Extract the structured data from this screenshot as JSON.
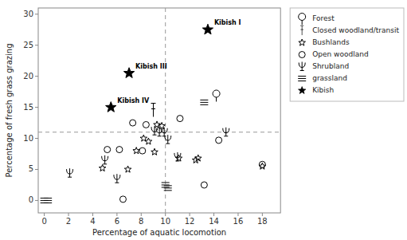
{
  "chart_data": {
    "type": "scatter",
    "xlabel": "Percentage of aquatic locomotion",
    "ylabel": "Percentage of fresh grass grazing",
    "xlim": [
      -0.5,
      19.5
    ],
    "ylim": [
      -2,
      31
    ],
    "xticks": [
      0,
      2,
      4,
      6,
      8,
      10,
      12,
      14,
      16,
      18
    ],
    "yticks": [
      0,
      5,
      10,
      15,
      20,
      25,
      30
    ],
    "hline": 11.0,
    "vline": 10.0,
    "color": "#000000",
    "legend": "right",
    "grid": false,
    "series": [
      {
        "name": "Forest",
        "marker": "tree",
        "x": [
          14.2
        ],
        "values": [
          17.2
        ]
      },
      {
        "name": "Closed woodland/transit",
        "marker": "pole",
        "x": [
          9.0
        ],
        "values": [
          14.5
        ]
      },
      {
        "name": "Bushlands",
        "marker": "star-open",
        "x": [
          4.8,
          6.9,
          7.6,
          8.2,
          8.6,
          9.1,
          9.3,
          9.7,
          11.1,
          12.5,
          12.7,
          18.0
        ],
        "values": [
          5.2,
          5.0,
          8.0,
          10.0,
          9.5,
          7.8,
          12.2,
          12.0,
          6.8,
          6.5,
          6.8,
          5.5
        ]
      },
      {
        "name": "Open woodland",
        "marker": "circle",
        "x": [
          5.2,
          6.2,
          6.5,
          7.3,
          8.1,
          8.4,
          11.2,
          13.2,
          14.4,
          18.0
        ],
        "values": [
          8.2,
          8.2,
          0.2,
          12.5,
          8.0,
          12.2,
          13.2,
          2.5,
          9.7,
          5.8
        ]
      },
      {
        "name": "Shrubland",
        "marker": "psi",
        "x": [
          2.1,
          5.0,
          6.0,
          9.1,
          9.5,
          9.9,
          10.2,
          11.0,
          15.0
        ],
        "values": [
          4.4,
          6.5,
          3.5,
          11.2,
          11.0,
          11.0,
          9.8,
          7.0,
          11.0
        ]
      },
      {
        "name": "grassland",
        "marker": "triple-bar",
        "x": [
          0.0,
          0.3,
          10.0,
          10.2,
          13.2
        ],
        "values": [
          0.0,
          0.0,
          2.5,
          2.0,
          15.8
        ]
      },
      {
        "name": "Kibish",
        "marker": "star",
        "x": [
          13.5,
          7.0,
          5.5
        ],
        "values": [
          27.5,
          20.5,
          15.0
        ]
      }
    ],
    "annotations": [
      {
        "text": "Kibish I",
        "x": 13.5,
        "y": 27.5
      },
      {
        "text": "Kibish III",
        "x": 7.0,
        "y": 20.5
      },
      {
        "text": "Kibish IV",
        "x": 5.5,
        "y": 15.0
      }
    ]
  }
}
